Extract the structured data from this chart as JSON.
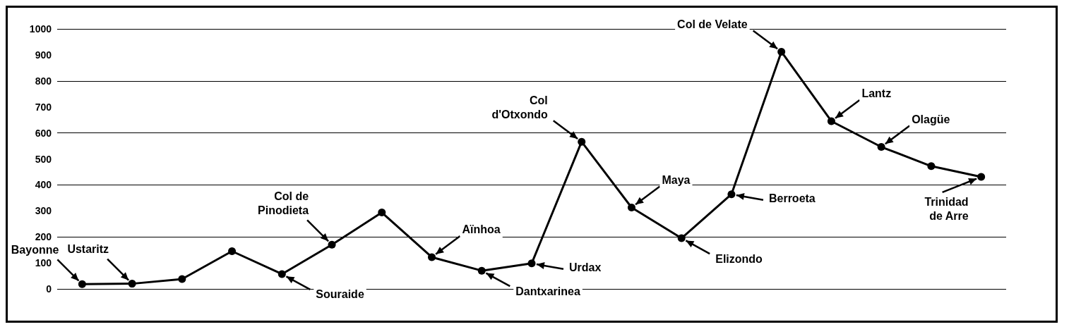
{
  "chart_data": {
    "type": "line",
    "categories": [
      null,
      null,
      null,
      null,
      null,
      null,
      null,
      null,
      null,
      null,
      null,
      null,
      null,
      null,
      null,
      null,
      null,
      null,
      null
    ],
    "values": [
      18,
      20,
      38,
      145,
      57,
      170,
      294,
      122,
      70,
      98,
      566,
      313,
      195,
      364,
      912,
      645,
      546,
      472,
      431
    ],
    "value_labels": [
      "Bayonne",
      "Ustaritz",
      null,
      null,
      "Souraide",
      "Col de\nPinodieta",
      null,
      "Aïnhoa",
      "Dantxarinea",
      "Urdax",
      "Col\nd'Otxondo",
      "Maya",
      "Elizondo",
      "Berroeta",
      "Col de Velate",
      "Lantz",
      "Olagüe",
      null,
      "Trinidad\nde Arre"
    ],
    "color": "#000000",
    "marker": "circle",
    "line_style": "solid",
    "grid": "y",
    "tick_labels": "y",
    "ylim": [
      0,
      1000
    ],
    "yticks": [
      0,
      100,
      200,
      300,
      400,
      500,
      600,
      700,
      800,
      900,
      1000
    ]
  }
}
